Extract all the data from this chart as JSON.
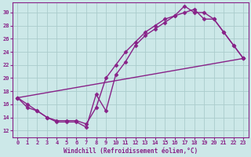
{
  "xlabel": "Windchill (Refroidissement éolien,°C)",
  "xlim": [
    -0.5,
    23.5
  ],
  "ylim": [
    11.0,
    31.5
  ],
  "xticks": [
    0,
    1,
    2,
    3,
    4,
    5,
    6,
    7,
    8,
    9,
    10,
    11,
    12,
    13,
    14,
    15,
    16,
    17,
    18,
    19,
    20,
    21,
    22,
    23
  ],
  "yticks": [
    12,
    14,
    16,
    18,
    20,
    22,
    24,
    26,
    28,
    30
  ],
  "bg_color": "#cce8e8",
  "grid_color": "#aacccc",
  "line_color": "#882288",
  "marker": "D",
  "marker_size": 2.5,
  "line_width": 1.0,
  "line1_x": [
    0,
    1,
    2,
    3,
    4,
    5,
    6,
    7,
    8,
    9,
    10,
    11,
    12,
    13,
    14,
    15,
    16,
    17,
    18,
    19,
    20,
    21,
    22,
    23
  ],
  "line1_y": [
    17,
    16,
    15,
    14,
    13.3,
    13.3,
    13.3,
    12.5,
    17.5,
    15,
    20.5,
    22.5,
    25,
    26.5,
    27.5,
    28.5,
    29.5,
    31,
    30,
    30,
    29,
    27,
    25,
    23
  ],
  "line2_x": [
    0,
    1,
    2,
    3,
    4,
    5,
    6,
    7,
    8,
    9,
    10,
    11,
    12,
    13,
    14,
    15,
    16,
    17,
    18,
    19,
    20,
    21,
    22,
    23
  ],
  "line2_y": [
    17,
    15.5,
    15,
    14,
    13.5,
    13.5,
    13.5,
    13,
    15.5,
    20.0,
    22.0,
    24.0,
    25.5,
    27.0,
    28.0,
    29.0,
    29.5,
    30,
    30.5,
    29,
    29,
    27,
    25,
    23
  ],
  "line3_x": [
    0,
    23
  ],
  "line3_y": [
    17,
    23
  ]
}
